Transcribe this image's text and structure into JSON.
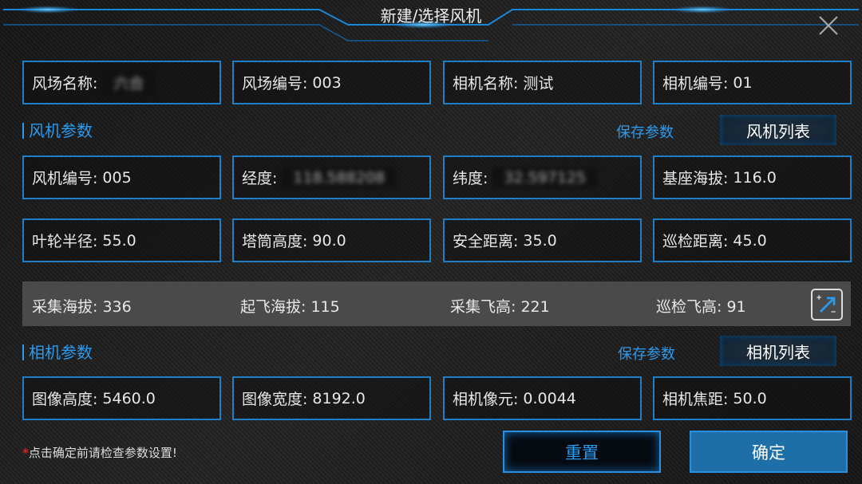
{
  "dialog": {
    "title": "新建/选择风机",
    "close_icon": "close-icon"
  },
  "farm": [
    {
      "label": "风场名称:",
      "value": "六合",
      "blurred": true
    },
    {
      "label": "风场编号:",
      "value": "003"
    },
    {
      "label": "相机名称:",
      "value": "测试"
    },
    {
      "label": "相机编号:",
      "value": "01"
    }
  ],
  "turbine_section": {
    "title": "风机参数",
    "save_label": "保存参数",
    "list_label": "风机列表"
  },
  "turbine": [
    {
      "label": "风机编号:",
      "value": "005"
    },
    {
      "label": "经度:",
      "value": "118.588208",
      "blurred": true
    },
    {
      "label": "纬度:",
      "value": "32.597125",
      "blurred": true
    },
    {
      "label": "基座海拔:",
      "value": "116.0"
    },
    {
      "label": "叶轮半径:",
      "value": "55.0"
    },
    {
      "label": "塔筒高度:",
      "value": "90.0"
    },
    {
      "label": "安全距离:",
      "value": "35.0"
    },
    {
      "label": "巡检距离:",
      "value": "45.0"
    }
  ],
  "computed": [
    {
      "label": "采集海拔:",
      "value": "336"
    },
    {
      "label": "起飞海拔:",
      "value": "115"
    },
    {
      "label": "采集飞高:",
      "value": "221"
    },
    {
      "label": "巡检飞高:",
      "value": "91"
    }
  ],
  "camera_section": {
    "title": "相机参数",
    "save_label": "保存参数",
    "list_label": "相机列表"
  },
  "camera": [
    {
      "label": "图像高度:",
      "value": "5460.0"
    },
    {
      "label": "图像宽度:",
      "value": "8192.0"
    },
    {
      "label": "相机像元:",
      "value": "0.0044"
    },
    {
      "label": "相机焦距:",
      "value": "50.0"
    }
  ],
  "footer": {
    "asterisk": "*",
    "note": "点击确定前请检查参数设置!",
    "reset_label": "重置",
    "confirm_label": "确定"
  },
  "colors": {
    "accent": "#2a9bf0",
    "border": "#1c7fc8",
    "confirm_bg": "#1e6fa8"
  }
}
